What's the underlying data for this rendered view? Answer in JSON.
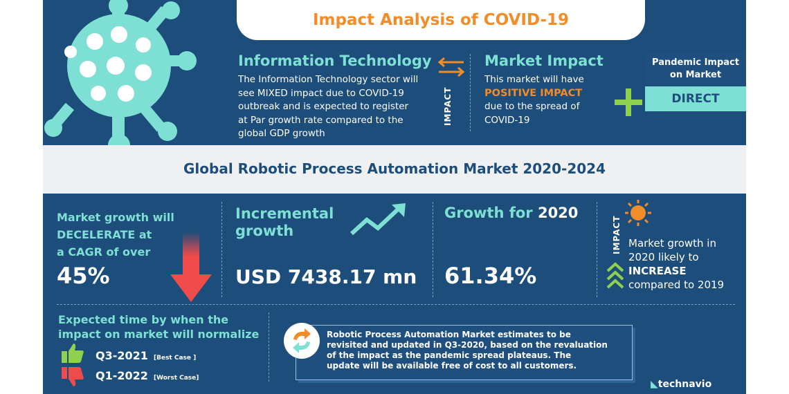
{
  "title": "Impact Analysis of COVID-19",
  "it": {
    "heading": "Information Technology",
    "lines": [
      "The Information Technology sector will",
      "see MIXED  impact due to COVID-19",
      "outbreak and is expected to register",
      "at Par growth rate compared to the",
      "global GDP growth"
    ]
  },
  "impact_label": "IMPACT",
  "market_impact": {
    "heading": "Market Impact",
    "line1": "This market will have",
    "highlight": "POSITIVE IMPACT",
    "line3": "due to the spread of",
    "line4": "COVID-19"
  },
  "pandemic": {
    "heading_line1": "Pandemic Impact",
    "heading_line2": "on Market",
    "value": "DIRECT"
  },
  "band_title": "Global Robotic Process Automation Market 2020-2024",
  "cagr": {
    "line1": "Market growth will",
    "line2": "DECELERATE at",
    "line3": "a CAGR of over",
    "value": "45%"
  },
  "incremental": {
    "line1": "Incremental",
    "line2": "growth",
    "value": "USD 7438.17 mn"
  },
  "growth2020": {
    "label": "Growth for ",
    "year": "2020",
    "value": "61.34%"
  },
  "impact_right": {
    "label": "IMPACT",
    "line1": "Market growth in",
    "line2": "2020 likely to",
    "highlight": "INCREASE",
    "line4": "compared to 2019"
  },
  "normalize": {
    "line1": "Expected time by when the",
    "line2": "impact on market will normalize",
    "best_date": "Q3-2021",
    "best_tag": "[Best Case ]",
    "worst_date": "Q1-2022",
    "worst_tag": "[Worst Case]"
  },
  "note": {
    "lines": [
      "Robotic Process Automation Market estimates to be",
      "revisited and updated in Q3-2020, based on the revaluation",
      "of the impact as the pandemic spread plateaus. The",
      "update will be available free of cost to all customers."
    ]
  },
  "brand": "technavio",
  "colors": {
    "teal": "#7ee0d4",
    "orange": "#f28c28",
    "navy": "#1d4d7a",
    "green": "#8fd14f",
    "red": "#ef4b4b"
  }
}
